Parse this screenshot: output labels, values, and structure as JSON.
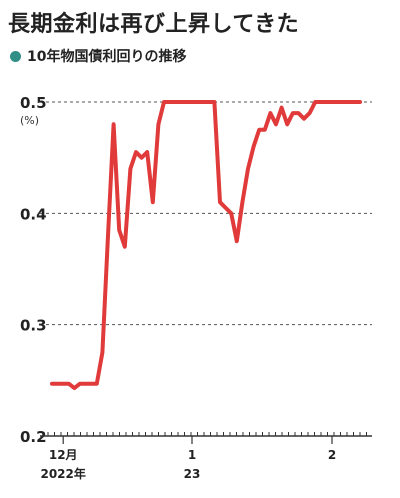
{
  "title": "長期金利は再び上昇してきた",
  "subtitle": "10年物国債利回りの推移",
  "colors": {
    "line": "#e03a3a",
    "bullet": "#2f8f86",
    "grid": "#555555",
    "axis": "#333333"
  },
  "chart_data": {
    "type": "line",
    "title": "長期金利は再び上昇してきた",
    "subtitle": "10年物国債利回りの推移",
    "unit_label": "(%)",
    "ylim": [
      0.2,
      0.5
    ],
    "yticks": [
      0.2,
      0.3,
      0.4,
      0.5
    ],
    "grid": "horizontal-dashed",
    "x_tick_labels": [
      {
        "index": 2,
        "line1": "12月",
        "line2": "2022年"
      },
      {
        "index": 25,
        "line1": "1",
        "line2": "23"
      },
      {
        "index": 50,
        "line1": "2",
        "line2": ""
      }
    ],
    "x_count": 67,
    "series": [
      {
        "values": [
          0.247,
          0.247,
          0.247,
          0.247,
          0.243,
          0.247,
          0.247,
          0.247,
          0.247,
          0.275,
          0.38,
          0.48,
          0.385,
          0.37,
          0.44,
          0.455,
          0.45,
          0.455,
          0.41,
          0.48,
          0.5,
          0.5,
          0.5,
          0.5,
          0.5,
          0.5,
          0.5,
          0.5,
          0.5,
          0.5,
          0.41,
          0.405,
          0.4,
          0.375,
          0.41,
          0.44,
          0.46,
          0.475,
          0.475,
          0.49,
          0.48,
          0.495,
          0.48,
          0.49,
          0.49,
          0.485,
          0.49,
          0.5,
          0.5,
          0.5,
          0.5,
          0.5,
          0.5,
          0.5,
          0.5,
          0.5
        ]
      }
    ]
  }
}
